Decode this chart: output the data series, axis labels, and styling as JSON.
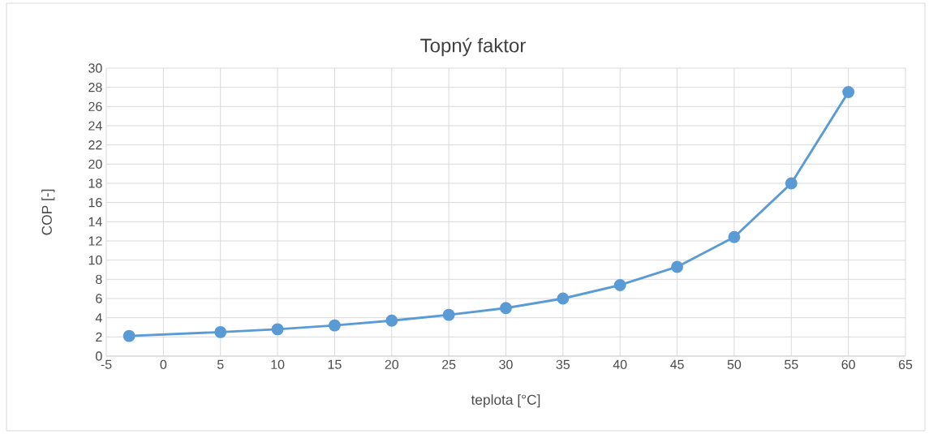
{
  "chart_data": {
    "type": "line",
    "title": "Topný faktor",
    "xlabel": "teplota [°C]",
    "ylabel": "COP [-]",
    "x": [
      -3,
      5,
      10,
      15,
      20,
      25,
      30,
      35,
      40,
      45,
      50,
      55,
      60
    ],
    "series": [
      {
        "color": "#5b9bd5",
        "values": [
          2.1,
          2.5,
          2.8,
          3.2,
          3.7,
          4.3,
          5.0,
          6.0,
          7.4,
          9.3,
          12.4,
          18.0,
          27.5
        ]
      }
    ],
    "xlim": [
      -5,
      65
    ],
    "ylim": [
      0,
      30
    ],
    "xticks": [
      -5,
      0,
      5,
      10,
      15,
      20,
      25,
      30,
      35,
      40,
      45,
      50,
      55,
      60,
      65
    ],
    "yticks": [
      0,
      2,
      4,
      6,
      8,
      10,
      12,
      14,
      16,
      18,
      20,
      22,
      24,
      26,
      28,
      30
    ],
    "grid": true,
    "marker": "circle",
    "line_style": "solid"
  }
}
